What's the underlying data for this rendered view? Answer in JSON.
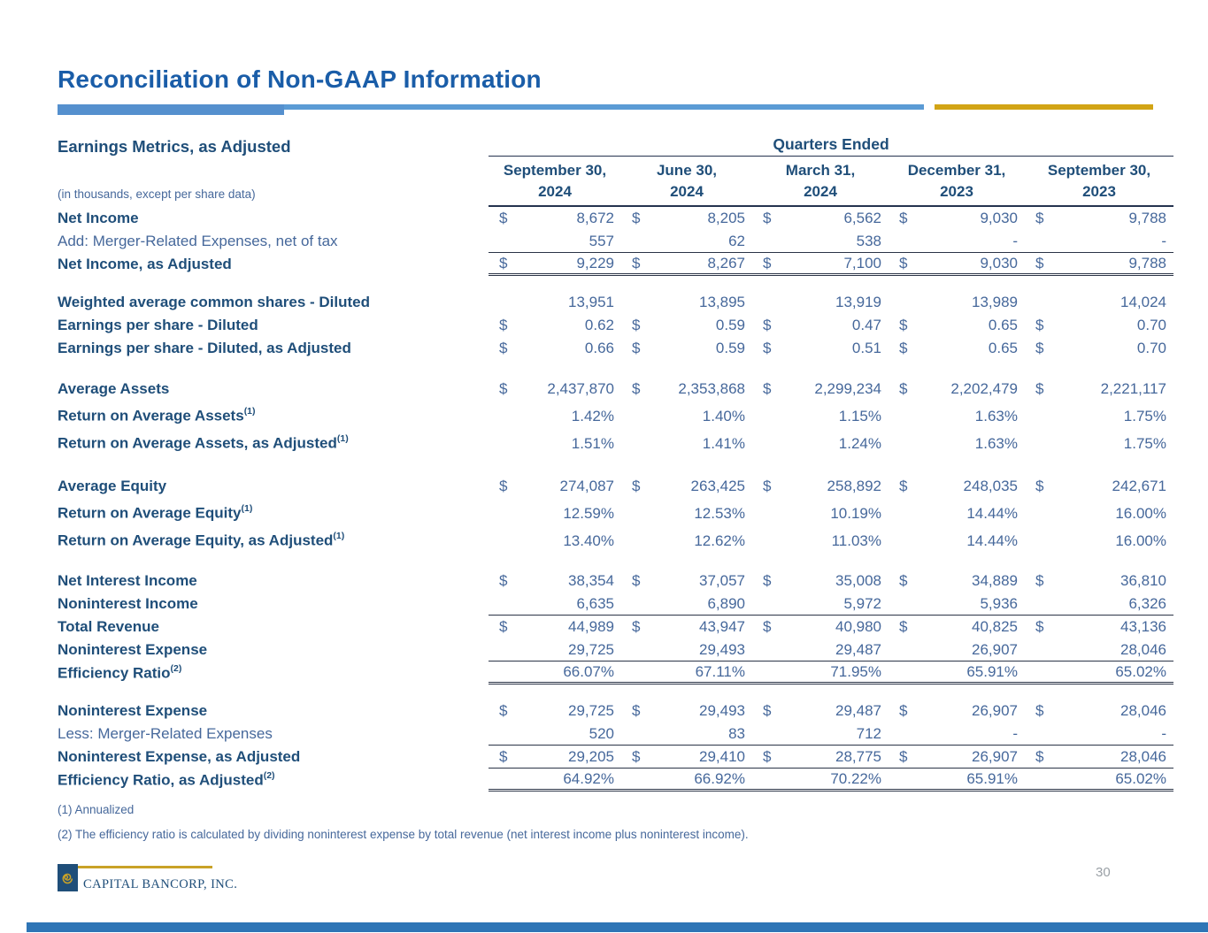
{
  "slide": {
    "title": "Reconciliation of Non-GAAP Information",
    "page_number": "30",
    "colors": {
      "title_blue": "#1A5DA8",
      "accent_bar_blue": "#5B9BD5",
      "accent_bar_gold": "#D2A415",
      "table_navy": "#1F4E79",
      "value_steel_blue": "#46689B",
      "bottom_bar_blue": "#2E75B6",
      "logo_gold": "#C9A227"
    }
  },
  "table": {
    "left_header": "Earnings Metrics, as Adjusted",
    "units_note": "(in thousands, except per share data)",
    "group_header": "Quarters Ended",
    "dollar_sign": "$",
    "columns": [
      {
        "line1": "September 30,",
        "line2": "2024"
      },
      {
        "line1": "June 30,",
        "line2": "2024"
      },
      {
        "line1": "March 31,",
        "line2": "2024"
      },
      {
        "line1": "December 31,",
        "line2": "2023"
      },
      {
        "line1": "September 30,",
        "line2": "2023"
      }
    ],
    "rows": [
      {
        "label": "Net Income",
        "bold": true,
        "dollar": true,
        "values": [
          "8,672",
          "8,205",
          "6,562",
          "9,030",
          "9,788"
        ]
      },
      {
        "label": "Add: Merger-Related Expenses, net of tax",
        "bold": false,
        "u": "single",
        "values": [
          "557",
          "62",
          "538",
          "-",
          "-"
        ]
      },
      {
        "label": "Net Income, as Adjusted",
        "bold": true,
        "dollar": true,
        "u": "double",
        "values": [
          "9,229",
          "8,267",
          "7,100",
          "9,030",
          "9,788"
        ]
      },
      {
        "label": "Weighted average common shares - Diluted",
        "bold": true,
        "gap_before": true,
        "values": [
          "13,951",
          "13,895",
          "13,919",
          "13,989",
          "14,024"
        ]
      },
      {
        "label": "Earnings per share - Diluted",
        "bold": true,
        "dollar": true,
        "values": [
          "0.62",
          "0.59",
          "0.47",
          "0.65",
          "0.70"
        ]
      },
      {
        "label": "Earnings per share - Diluted, as Adjusted",
        "bold": true,
        "dollar": true,
        "values": [
          "0.66",
          "0.59",
          "0.51",
          "0.65",
          "0.70"
        ]
      },
      {
        "label": "Average Assets",
        "bold": true,
        "dollar": true,
        "gap_before": true,
        "tall": true,
        "values": [
          "2,437,870",
          "2,353,868",
          "2,299,234",
          "2,202,479",
          "2,221,117"
        ]
      },
      {
        "label": "Return on Average Assets",
        "sup": "(1)",
        "bold": true,
        "tall": true,
        "values": [
          "1.42%",
          "1.40%",
          "1.15%",
          "1.63%",
          "1.75%"
        ]
      },
      {
        "label": "Return on Average Assets, as Adjusted",
        "sup": "(1)",
        "bold": true,
        "tall": true,
        "values": [
          "1.51%",
          "1.41%",
          "1.24%",
          "1.63%",
          "1.75%"
        ]
      },
      {
        "label": "Average Equity",
        "bold": true,
        "dollar": true,
        "gap_before": true,
        "tall": true,
        "values": [
          "274,087",
          "263,425",
          "258,892",
          "248,035",
          "242,671"
        ]
      },
      {
        "label": "Return on Average Equity",
        "sup": "(1)",
        "bold": true,
        "tall": true,
        "values": [
          "12.59%",
          "12.53%",
          "10.19%",
          "14.44%",
          "16.00%"
        ]
      },
      {
        "label": "Return on Average Equity, as Adjusted",
        "sup": "(1)",
        "bold": true,
        "tall": true,
        "values": [
          "13.40%",
          "12.62%",
          "11.03%",
          "14.44%",
          "16.00%"
        ]
      },
      {
        "label": "Net Interest Income",
        "bold": true,
        "dollar": true,
        "gap_before": true,
        "values": [
          "38,354",
          "37,057",
          "35,008",
          "34,889",
          "36,810"
        ]
      },
      {
        "label": "Noninterest Income",
        "bold": true,
        "u": "single",
        "values": [
          "6,635",
          "6,890",
          "5,972",
          "5,936",
          "6,326"
        ]
      },
      {
        "label": "Total Revenue",
        "bold": true,
        "dollar": true,
        "values": [
          "44,989",
          "43,947",
          "40,980",
          "40,825",
          "43,136"
        ]
      },
      {
        "label": "Noninterest Expense",
        "bold": true,
        "u": "single",
        "values": [
          "29,725",
          "29,493",
          "29,487",
          "26,907",
          "28,046"
        ]
      },
      {
        "label": "Efficiency Ratio",
        "sup": "(2)",
        "bold": true,
        "u": "double",
        "values": [
          "66.07%",
          "67.11%",
          "71.95%",
          "65.91%",
          "65.02%"
        ]
      },
      {
        "label": "Noninterest Expense",
        "bold": true,
        "dollar": true,
        "gap_before": true,
        "values": [
          "29,725",
          "29,493",
          "29,487",
          "26,907",
          "28,046"
        ]
      },
      {
        "label": "Less: Merger-Related Expenses",
        "bold": false,
        "u": "single",
        "values": [
          "520",
          "83",
          "712",
          "-",
          "-"
        ]
      },
      {
        "label": "Noninterest Expense, as Adjusted",
        "bold": true,
        "dollar": true,
        "u": "single",
        "values": [
          "29,205",
          "29,410",
          "28,775",
          "26,907",
          "28,046"
        ]
      },
      {
        "label": "Efficiency Ratio, as Adjusted",
        "sup": "(2)",
        "bold": true,
        "u": "double",
        "values": [
          "64.92%",
          "66.92%",
          "70.22%",
          "65.91%",
          "65.02%"
        ]
      }
    ]
  },
  "footnotes": {
    "note1": "(1) Annualized",
    "note2": "(2) The efficiency ratio is calculated by dividing noninterest expense by total revenue (net interest income plus noninterest income)."
  },
  "footer": {
    "company": "CAPITAL BANCORP, INC."
  }
}
